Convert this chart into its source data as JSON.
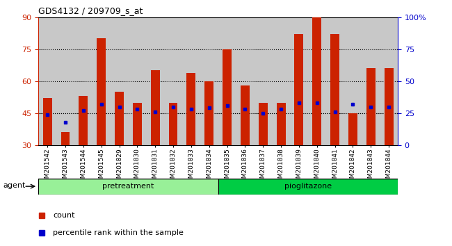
{
  "title": "GDS4132 / 209709_s_at",
  "samples": [
    "GSM201542",
    "GSM201543",
    "GSM201544",
    "GSM201545",
    "GSM201829",
    "GSM201830",
    "GSM201831",
    "GSM201832",
    "GSM201833",
    "GSM201834",
    "GSM201835",
    "GSM201836",
    "GSM201837",
    "GSM201838",
    "GSM201839",
    "GSM201840",
    "GSM201841",
    "GSM201842",
    "GSM201843",
    "GSM201844"
  ],
  "counts": [
    52,
    36,
    53,
    80,
    55,
    50,
    65,
    50,
    64,
    60,
    75,
    58,
    50,
    50,
    82,
    90,
    82,
    45,
    66,
    66
  ],
  "percentiles": [
    24,
    18,
    27,
    32,
    30,
    28,
    26,
    30,
    28,
    29,
    31,
    28,
    25,
    28,
    33,
    33,
    26,
    32,
    30,
    30
  ],
  "groups": [
    {
      "label": "pretreatment",
      "start": 0,
      "end": 10,
      "color": "#98F098"
    },
    {
      "label": "pioglitazone",
      "start": 10,
      "end": 20,
      "color": "#00CC44"
    }
  ],
  "bar_color": "#CC2200",
  "marker_color": "#0000CC",
  "ylim_left": [
    30,
    90
  ],
  "ylim_right": [
    0,
    100
  ],
  "yticks_left": [
    30,
    45,
    60,
    75,
    90
  ],
  "yticks_right": [
    0,
    25,
    50,
    75,
    100
  ],
  "ytick_right_labels": [
    "0",
    "25",
    "50",
    "75",
    "100%"
  ],
  "grid_values": [
    45,
    60,
    75
  ],
  "legend_labels": [
    "count",
    "percentile rank within the sample"
  ],
  "agent_label": "agent",
  "background_color": "#ffffff",
  "plot_bg_color": "#c8c8c8",
  "bar_width": 0.5
}
